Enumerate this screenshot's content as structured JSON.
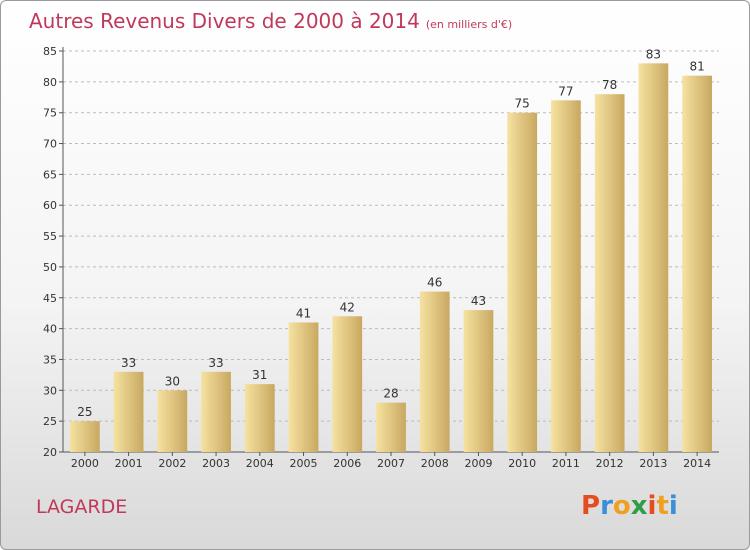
{
  "header": {
    "title": "Autres Revenus Divers de 2000 à 2014",
    "unit": "(en milliers d'€)"
  },
  "footer": {
    "city": "LAGARDE",
    "logo": {
      "letters": [
        "P",
        "r",
        "o",
        "x",
        "i",
        "t",
        "i"
      ],
      "colors": [
        "#e74c1c",
        "#3a8fd8",
        "#f0a020",
        "#2f9e44",
        "#e74c1c",
        "#f0a020",
        "#3a8fd8"
      ]
    }
  },
  "colors": {
    "title": "#c0395a",
    "bar_light": "#f6e2a0",
    "bar_dark": "#c8a861",
    "grid": "#bcbcbc"
  },
  "chart_data": {
    "type": "bar",
    "title": "Autres Revenus Divers de 2000 à 2014",
    "xlabel": "",
    "ylabel": "",
    "ylim": [
      20,
      85
    ],
    "yticks": [
      20,
      25,
      30,
      35,
      40,
      45,
      50,
      55,
      60,
      65,
      70,
      75,
      80,
      85
    ],
    "grid": "horizontal-dashed",
    "categories": [
      "2000",
      "2001",
      "2002",
      "2003",
      "2004",
      "2005",
      "2006",
      "2007",
      "2008",
      "2009",
      "2010",
      "2011",
      "2012",
      "2013",
      "2014"
    ],
    "values": [
      25,
      33,
      30,
      33,
      31,
      41,
      42,
      28,
      46,
      43,
      75,
      77,
      78,
      83,
      81
    ]
  }
}
